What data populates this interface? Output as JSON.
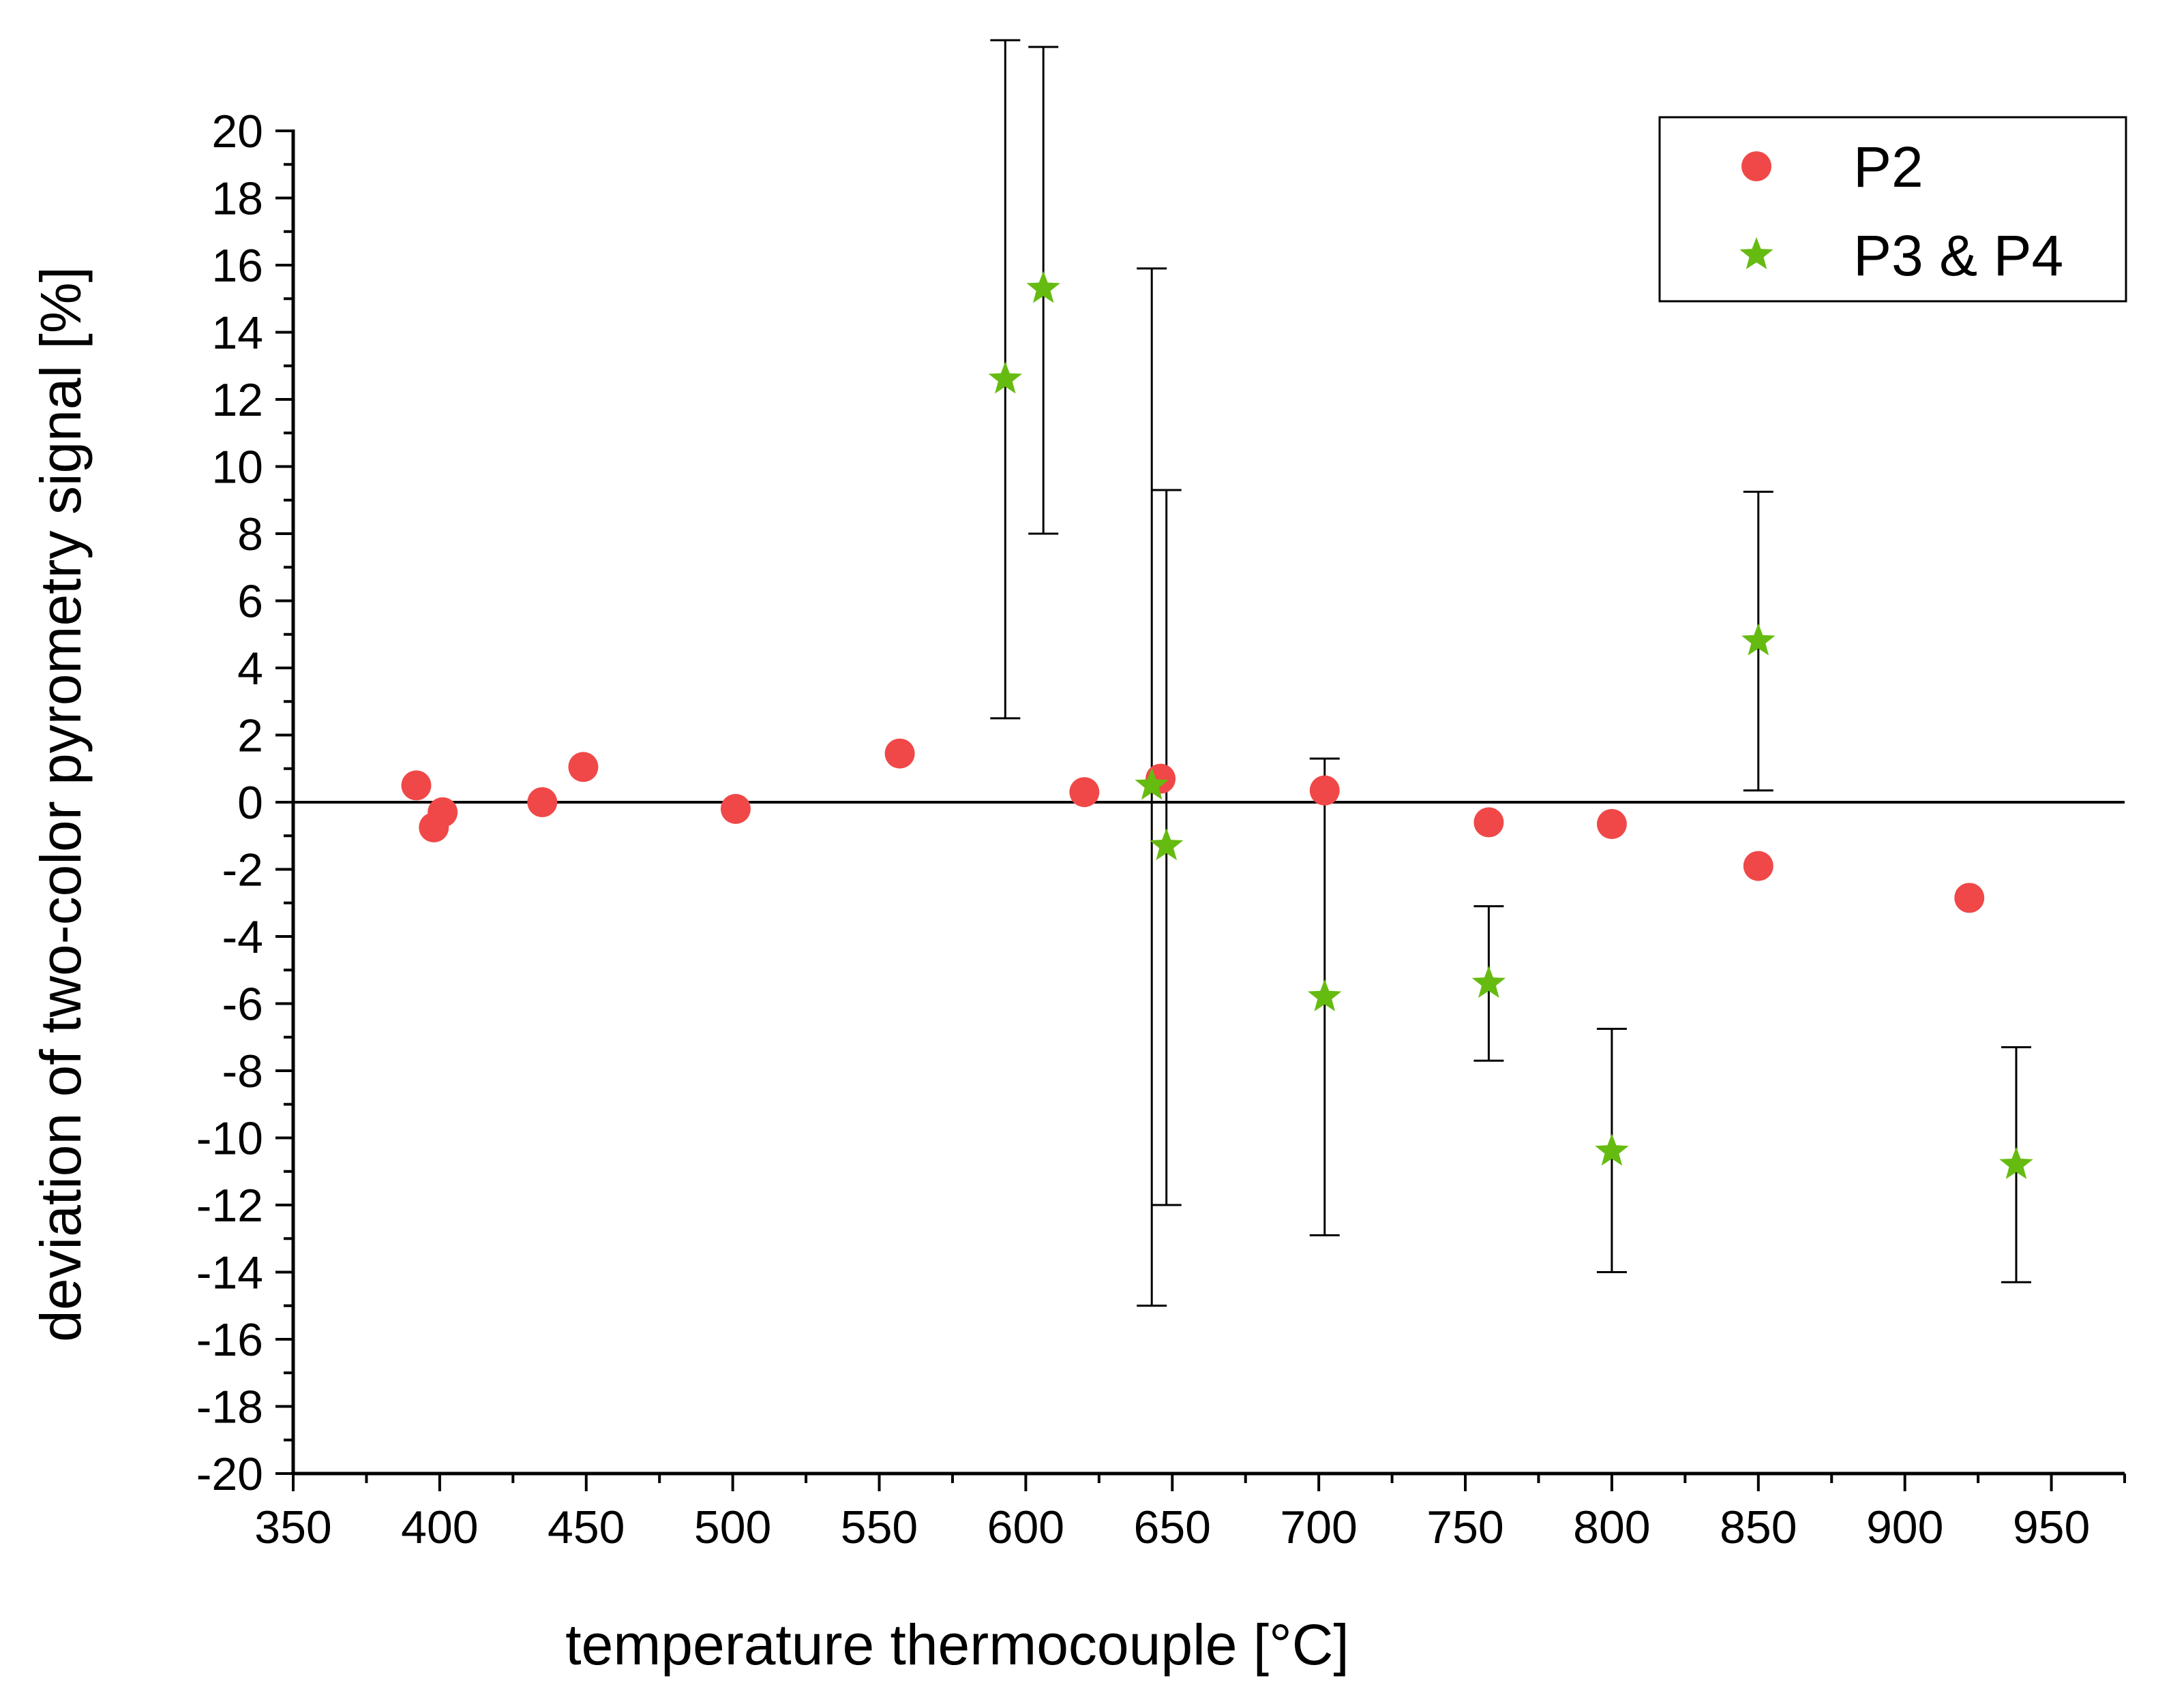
{
  "chart_data": {
    "type": "scatter",
    "title": "",
    "xlabel": "temperature thermocouple [°C]",
    "ylabel": "deviation of two-color pyrometry signal [%]",
    "xlim": [
      350,
      975
    ],
    "ylim": [
      -20,
      20
    ],
    "x_ticks": [
      350,
      400,
      450,
      500,
      550,
      600,
      650,
      700,
      750,
      800,
      850,
      900,
      950
    ],
    "x_tick_labels": [
      "350",
      "400",
      "450",
      "500",
      "550",
      "600",
      "650",
      "700",
      "750",
      "800",
      "850",
      "900",
      "950"
    ],
    "y_ticks": [
      -20,
      -18,
      -16,
      -14,
      -12,
      -10,
      -8,
      -6,
      -4,
      -2,
      0,
      2,
      4,
      6,
      8,
      10,
      12,
      14,
      16,
      18,
      20
    ],
    "y_tick_labels": [
      "-20",
      "-18",
      "-16",
      "-14",
      "-12",
      "-10",
      "-8",
      "-6",
      "-4",
      "-2",
      "0",
      "2",
      "4",
      "6",
      "8",
      "10",
      "12",
      "14",
      "16",
      "18",
      "20"
    ],
    "zero_line": true,
    "legend_position": "top-right",
    "series": [
      {
        "name": "P2",
        "marker": "circle",
        "color": "#f04848",
        "points": [
          {
            "x": 392,
            "y": 0.5
          },
          {
            "x": 398,
            "y": -0.75
          },
          {
            "x": 401,
            "y": -0.3
          },
          {
            "x": 435,
            "y": 0.0
          },
          {
            "x": 449,
            "y": 1.05
          },
          {
            "x": 501,
            "y": -0.2
          },
          {
            "x": 557,
            "y": 1.45
          },
          {
            "x": 620,
            "y": 0.3
          },
          {
            "x": 646,
            "y": 0.7
          },
          {
            "x": 702,
            "y": 0.35
          },
          {
            "x": 758,
            "y": -0.6
          },
          {
            "x": 800,
            "y": -0.65
          },
          {
            "x": 850,
            "y": -1.9
          },
          {
            "x": 922,
            "y": -2.85
          }
        ]
      },
      {
        "name": "P3 & P4",
        "marker": "star",
        "color": "#66bb11",
        "points": [
          {
            "x": 593,
            "y": 12.6,
            "ylo": 2.5,
            "yhi": 22.7
          },
          {
            "x": 606,
            "y": 15.3,
            "ylo": 8.0,
            "yhi": 22.5
          },
          {
            "x": 643,
            "y": 0.5,
            "ylo": -15.0,
            "yhi": 15.9
          },
          {
            "x": 648,
            "y": -1.3,
            "ylo": -12.0,
            "yhi": 9.3
          },
          {
            "x": 702,
            "y": -5.8,
            "ylo": -12.9,
            "yhi": 1.3
          },
          {
            "x": 758,
            "y": -5.4,
            "ylo": -7.7,
            "yhi": -3.1
          },
          {
            "x": 800,
            "y": -10.4,
            "ylo": -14.0,
            "yhi": -6.75
          },
          {
            "x": 850,
            "y": 4.8,
            "ylo": 0.35,
            "yhi": 9.25
          },
          {
            "x": 938,
            "y": -10.8,
            "ylo": -14.3,
            "yhi": -7.3
          }
        ]
      }
    ]
  }
}
